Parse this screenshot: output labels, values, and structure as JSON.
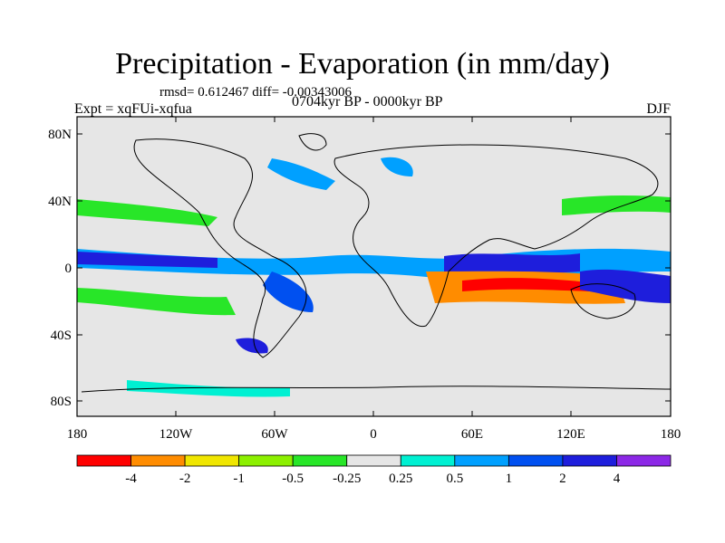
{
  "title": "Precipitation - Evaporation (in mm/day)",
  "stats_text": "rmsd= 0.612467 diff= -0.00343006",
  "experiment_text": "Expt = xqFUi-xqfua",
  "period_text": "0704kyr BP - 0000kyr BP",
  "season_text": "DJF",
  "map": {
    "background_color": "#e6e6e6",
    "coastline_color": "#000000",
    "lon_range": [
      -180,
      180
    ],
    "lat_range": [
      -90,
      90
    ],
    "lat_ticks": [
      "80N",
      "40N",
      "0",
      "40S",
      "80S"
    ],
    "lon_ticks": [
      "180",
      "120W",
      "60W",
      "0",
      "60E",
      "120E",
      "180"
    ]
  },
  "colorbar": {
    "colors": [
      "#ff0000",
      "#ff8c00",
      "#f0e600",
      "#8cf000",
      "#28e628",
      "#e6e6e6",
      "#00f0d2",
      "#00a0ff",
      "#0050f0",
      "#1e1edc",
      "#8c28e6"
    ],
    "labels": [
      "-4",
      "-2",
      "-1",
      "-0.5",
      "-0.25",
      "0.25",
      "0.5",
      "1",
      "2",
      "4"
    ]
  }
}
